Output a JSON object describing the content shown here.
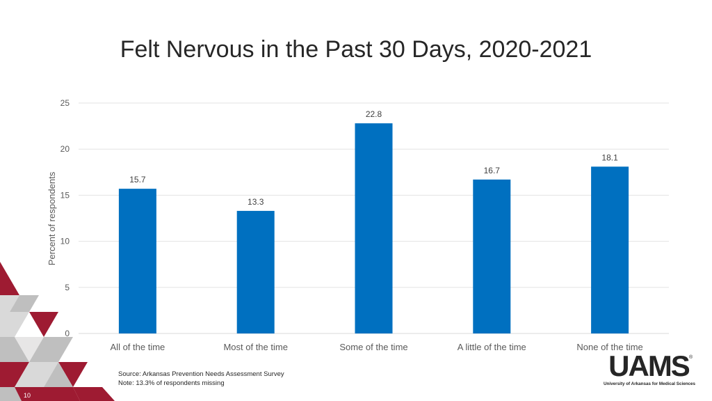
{
  "slide": {
    "title": "Felt Nervous in the Past 30 Days, 2020-2021",
    "source": "Source: Arkansas Prevention Needs Assessment Survey",
    "note": "Note: 13.3% of respondents missing",
    "page_number": "10"
  },
  "logo": {
    "wordmark": "UAMS",
    "subtitle": "University of Arkansas for Medical Sciences",
    "registered": "®"
  },
  "colors": {
    "bar": "#0070c0",
    "accent_red": "#9e1b32",
    "accent_gray": "#bfbfbf"
  },
  "chart_data": {
    "type": "bar",
    "categories": [
      "All of the time",
      "Most of the time",
      "Some of the time",
      "A little of the time",
      "None of the time"
    ],
    "values": [
      15.7,
      13.3,
      22.8,
      16.7,
      18.1
    ],
    "value_labels": [
      "15.7",
      "13.3",
      "22.8",
      "16.7",
      "18.1"
    ],
    "ylabel": "Percent of respondents",
    "ylim": [
      0,
      25
    ],
    "yticks": [
      0,
      5,
      10,
      15,
      20,
      25
    ],
    "grid": true,
    "legend": "none"
  }
}
